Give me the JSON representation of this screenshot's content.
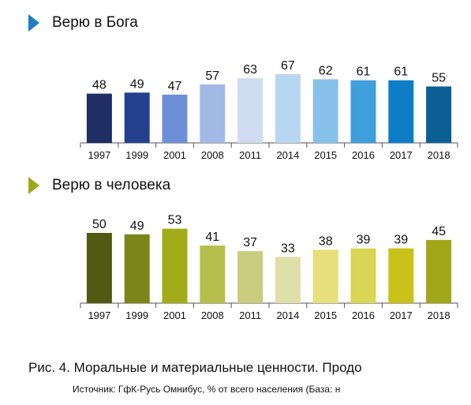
{
  "chart_data": [
    {
      "type": "bar",
      "title": "Верю в Бога",
      "categories": [
        "1997",
        "1999",
        "2001",
        "2008",
        "2011",
        "2014",
        "2015",
        "2016",
        "2017",
        "2018"
      ],
      "values": [
        48,
        49,
        47,
        57,
        63,
        67,
        62,
        61,
        61,
        55
      ],
      "colors": [
        "#1f2f66",
        "#23418e",
        "#6e8fd8",
        "#a3b9e6",
        "#cfdcf2",
        "#b9d6f0",
        "#87c1ea",
        "#3f9fdc",
        "#0d7ec6",
        "#0b5f95"
      ],
      "ylim": [
        0,
        70
      ],
      "title_marker_color": "#1f7fbf"
    },
    {
      "type": "bar",
      "title": "Верю в человека",
      "categories": [
        "1997",
        "1999",
        "2001",
        "2008",
        "2011",
        "2014",
        "2015",
        "2016",
        "2017",
        "2018"
      ],
      "values": [
        50,
        49,
        53,
        41,
        37,
        33,
        38,
        39,
        39,
        45
      ],
      "colors": [
        "#505a13",
        "#7a8619",
        "#a2ac18",
        "#b6bf4c",
        "#c9cd7d",
        "#dde0a8",
        "#e6df7c",
        "#d9d555",
        "#c9c21a",
        "#a0a81a"
      ],
      "ylim": [
        0,
        70
      ],
      "title_marker_color": "#9aaa1c"
    }
  ],
  "caption": "Рис. 4. Моральные и материальные ценности. Продо",
  "source": "Источник: ГфК-Русь Омнибус, % от всего населения (База: н"
}
